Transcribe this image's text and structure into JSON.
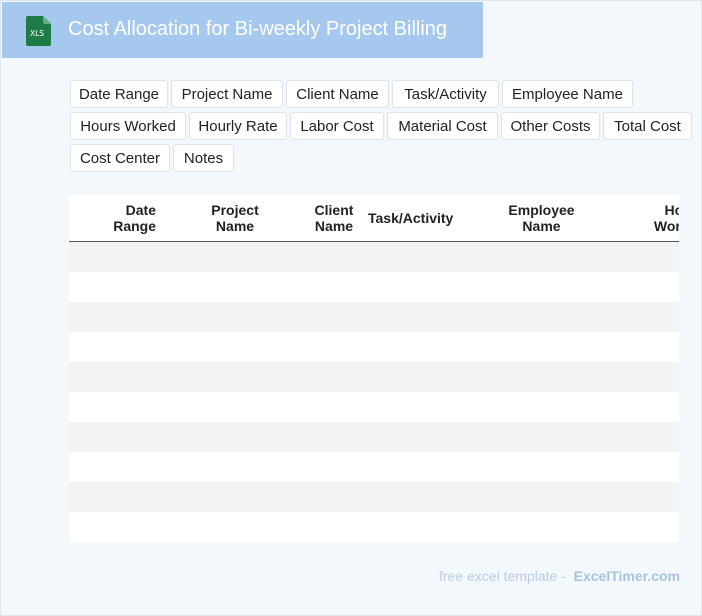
{
  "header": {
    "title": "Cost Allocation for Bi-weekly Project Billing",
    "icon_label": "XLS",
    "icon_color": "#1e7b45",
    "background": "#a6c8ef"
  },
  "fields": [
    "Date Range",
    "Project Name",
    "Client Name",
    "Task/Activity",
    "Employee Name",
    "Hours Worked",
    "Hourly Rate",
    "Labor Cost",
    "Material Cost",
    "Other Costs",
    "Total Cost",
    "Cost Center",
    "Notes"
  ],
  "table": {
    "columns": [
      {
        "l1": "Date",
        "l2": "Range"
      },
      {
        "l1": "Project",
        "l2": "Name"
      },
      {
        "l1": "Client",
        "l2": "Name"
      },
      {
        "l1": "Task/Activity",
        "l2": ""
      },
      {
        "l1": "Employee",
        "l2": "Name"
      },
      {
        "l1": "Hours",
        "l2": "Worked"
      }
    ]
  },
  "footer": {
    "text": "free excel template -",
    "brand": "ExcelTimer.com"
  }
}
